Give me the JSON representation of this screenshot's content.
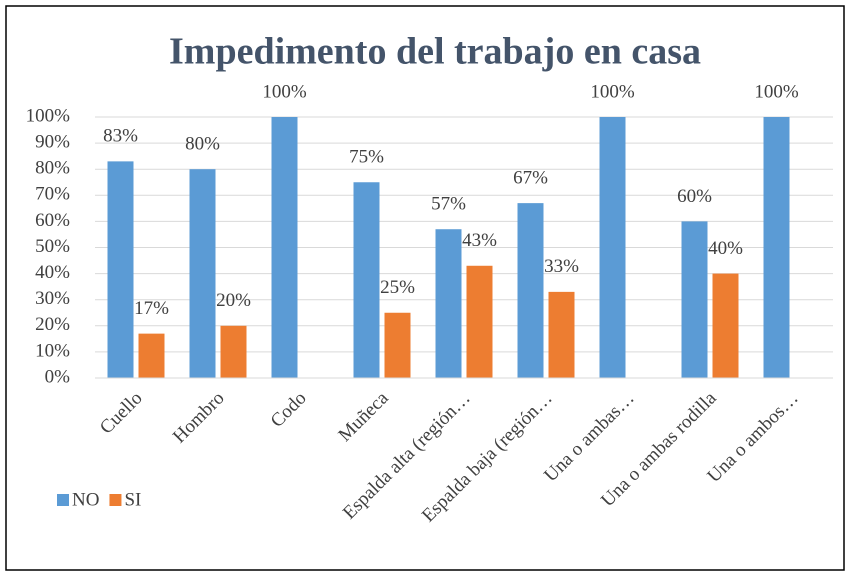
{
  "chart_data": {
    "type": "bar",
    "title": "Impedimento del trabajo en casa",
    "categories": [
      "Cuello",
      "Hombro",
      "Codo",
      "Muñeca",
      "Espalda alta (región…",
      "Espalda baja (región…",
      "Una o ambas…",
      "Una o ambas rodilla",
      "Una o ambos…"
    ],
    "series": [
      {
        "name": "NO",
        "color": "#5b9bd5",
        "values": [
          83,
          80,
          100,
          75,
          57,
          67,
          100,
          60,
          100
        ],
        "value_labels": [
          "83%",
          "80%",
          "100%",
          "75%",
          "57%",
          "67%",
          "100%",
          "60%",
          "100%"
        ]
      },
      {
        "name": "SI",
        "color": "#ed7d31",
        "values": [
          17,
          20,
          null,
          25,
          43,
          33,
          null,
          40,
          null
        ],
        "value_labels": [
          "17%",
          "20%",
          null,
          "25%",
          "43%",
          "33%",
          null,
          "40%",
          null
        ]
      }
    ],
    "ylim": [
      0,
      100
    ],
    "yticks": [
      {
        "value": 0,
        "label": "0%"
      },
      {
        "value": 10,
        "label": "10%"
      },
      {
        "value": 20,
        "label": "20%"
      },
      {
        "value": 30,
        "label": "30%"
      },
      {
        "value": 40,
        "label": "40%"
      },
      {
        "value": 50,
        "label": "50%"
      },
      {
        "value": 60,
        "label": "60%"
      },
      {
        "value": 70,
        "label": "70%"
      },
      {
        "value": 80,
        "label": "80%"
      },
      {
        "value": 90,
        "label": "90%"
      },
      {
        "value": 100,
        "label": "100%"
      }
    ],
    "grid": true,
    "legend": "bottom-left"
  }
}
